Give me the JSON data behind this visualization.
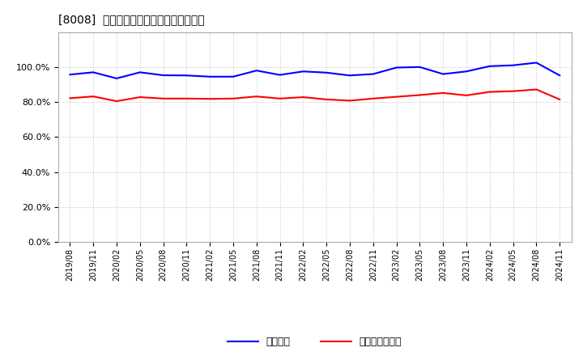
{
  "title": "[8008]  固定比率、固定長期適合率の推移",
  "series_blue_label": "固定比率",
  "series_red_label": "固定長期適合率",
  "blue_color": "#0000FF",
  "red_color": "#FF0000",
  "background_color": "#FFFFFF",
  "plot_bg_color": "#FFFFFF",
  "ylim": [
    0.0,
    1.2
  ],
  "yticks": [
    0.0,
    0.2,
    0.4,
    0.6,
    0.8,
    1.0
  ],
  "grid_color": "#AAAAAA",
  "dates": [
    "2019/08",
    "2019/11",
    "2020/02",
    "2020/05",
    "2020/08",
    "2020/11",
    "2021/02",
    "2021/05",
    "2021/08",
    "2021/11",
    "2022/02",
    "2022/05",
    "2022/08",
    "2022/11",
    "2023/02",
    "2023/05",
    "2023/08",
    "2023/11",
    "2024/02",
    "2024/05",
    "2024/08",
    "2024/11"
  ],
  "blue_values": [
    0.957,
    0.97,
    0.935,
    0.97,
    0.953,
    0.952,
    0.945,
    0.945,
    0.98,
    0.955,
    0.975,
    0.968,
    0.952,
    0.96,
    0.997,
    1.0,
    0.96,
    0.975,
    1.005,
    1.01,
    1.025,
    0.952
  ],
  "red_values": [
    0.822,
    0.832,
    0.805,
    0.828,
    0.82,
    0.82,
    0.818,
    0.82,
    0.832,
    0.82,
    0.828,
    0.815,
    0.808,
    0.82,
    0.83,
    0.84,
    0.852,
    0.838,
    0.858,
    0.862,
    0.872,
    0.815
  ],
  "line_width": 1.5
}
